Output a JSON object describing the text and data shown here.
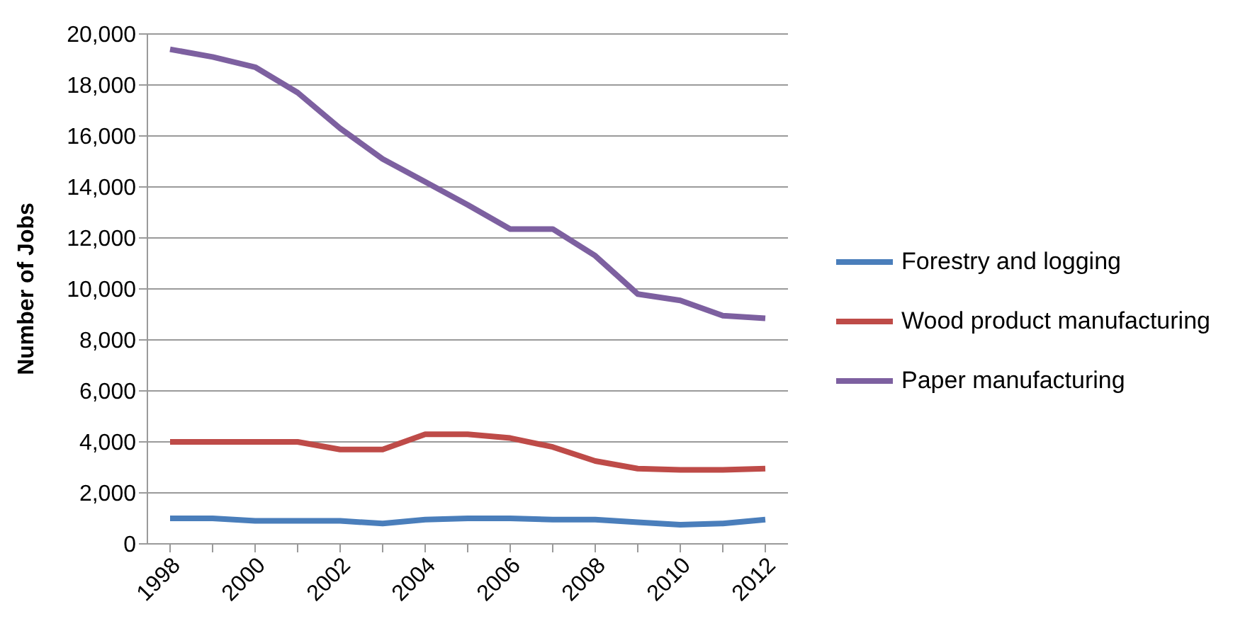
{
  "chart_data": {
    "type": "line",
    "ylabel": "Number of Jobs",
    "categories": [
      "1998",
      null,
      "2000",
      null,
      "2002",
      null,
      "2004",
      null,
      "2006",
      null,
      "2008",
      null,
      "2010",
      null,
      "2012"
    ],
    "series": [
      {
        "name": "Forestry and logging",
        "color": "#4a7ebb",
        "values": [
          1000,
          1000,
          900,
          900,
          900,
          800,
          950,
          1000,
          1000,
          950,
          950,
          850,
          750,
          800,
          950
        ]
      },
      {
        "name": "Wood product manufacturing",
        "color": "#be4b48",
        "values": [
          4000,
          4000,
          4000,
          4000,
          3700,
          3700,
          4300,
          4300,
          4150,
          3800,
          3250,
          2950,
          2900,
          2900,
          2950
        ]
      },
      {
        "name": "Paper manufacturing",
        "color": "#7d60a0",
        "values": [
          19400,
          19100,
          18700,
          17700,
          16300,
          15100,
          14200,
          13300,
          12350,
          12350,
          11300,
          9800,
          9550,
          8950,
          8850
        ]
      }
    ],
    "ylim": [
      0,
      20000
    ],
    "yticks": [
      0,
      {
        "value": 2000,
        "label": "2,000"
      },
      {
        "value": 4000,
        "label": "4,000"
      },
      {
        "value": 6000,
        "label": "6,000"
      },
      {
        "value": 8000,
        "label": "8,000"
      },
      {
        "value": 10000,
        "label": "10,000"
      },
      {
        "value": 12000,
        "label": "12,000"
      },
      {
        "value": 14000,
        "label": "14,000"
      },
      {
        "value": 16000,
        "label": "16,000"
      },
      {
        "value": 18000,
        "label": "18,000"
      },
      {
        "value": 20000,
        "label": "20,000"
      }
    ],
    "grid": "y",
    "legend": "right",
    "marker": "none",
    "line_style": "solid"
  }
}
